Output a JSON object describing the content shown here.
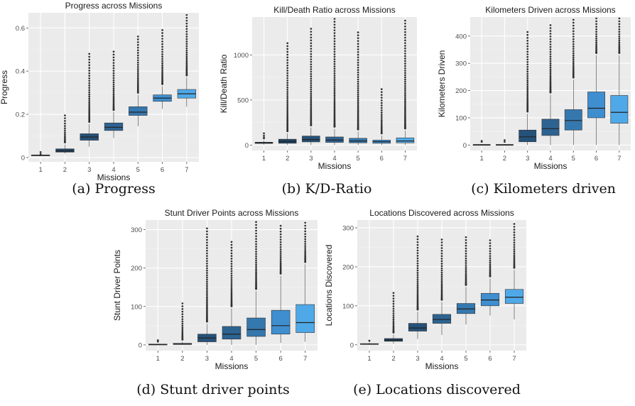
{
  "chart_data": [
    {
      "type": "box",
      "title": "Progress across Missions",
      "xlabel": "Missions",
      "ylabel": "Progress",
      "caption": "(a) Progress",
      "categories": [
        "1",
        "2",
        "3",
        "4",
        "5",
        "6",
        "7"
      ],
      "colors": [
        "#1d3b57",
        "#1f4666",
        "#26527a",
        "#2d6391",
        "#3578ae",
        "#3f8ed0",
        "#4fa9e8"
      ],
      "ylim": [
        -0.02,
        0.67
      ],
      "yticks": [
        0,
        0.2,
        0.4,
        0.6
      ],
      "ytick_labels": [
        "0",
        "0.2",
        "0.4",
        "0.6"
      ],
      "boxes": [
        {
          "q1": 0.008,
          "median": 0.01,
          "q3": 0.012,
          "whisker_low": 0.006,
          "whisker_high": 0.015,
          "outlier_max": 0.016
        },
        {
          "q1": 0.025,
          "median": 0.03,
          "q3": 0.04,
          "whisker_low": 0.018,
          "whisker_high": 0.06,
          "outlier_max": 0.195
        },
        {
          "q1": 0.08,
          "median": 0.095,
          "q3": 0.11,
          "whisker_low": 0.05,
          "whisker_high": 0.155,
          "outlier_max": 0.48
        },
        {
          "q1": 0.125,
          "median": 0.14,
          "q3": 0.16,
          "whisker_low": 0.09,
          "whisker_high": 0.21,
          "outlier_max": 0.49
        },
        {
          "q1": 0.195,
          "median": 0.21,
          "q3": 0.235,
          "whisker_low": 0.145,
          "whisker_high": 0.29,
          "outlier_max": 0.56
        },
        {
          "q1": 0.26,
          "median": 0.275,
          "q3": 0.29,
          "whisker_low": 0.225,
          "whisker_high": 0.33,
          "outlier_max": 0.59
        },
        {
          "q1": 0.275,
          "median": 0.295,
          "q3": 0.315,
          "whisker_low": 0.235,
          "whisker_high": 0.37,
          "outlier_max": 0.66
        }
      ]
    },
    {
      "type": "box",
      "title": "Kill/Death Ratio across Missions",
      "xlabel": "Missions",
      "ylabel": "Kill/Death Ratio",
      "caption": "(b) K/D-Ratio",
      "categories": [
        "1",
        "2",
        "3",
        "4",
        "5",
        "6",
        "7"
      ],
      "colors": [
        "#1d3b57",
        "#1f4666",
        "#26527a",
        "#2d6391",
        "#3578ae",
        "#3f8ed0",
        "#4fa9e8"
      ],
      "ylim": [
        -60,
        1420
      ],
      "yticks": [
        0,
        500,
        1000
      ],
      "ytick_labels": [
        "0",
        "500",
        "1000"
      ],
      "boxes": [
        {
          "q1": 18,
          "median": 25,
          "q3": 32,
          "whisker_low": 5,
          "whisker_high": 50,
          "outlier_max": 130
        },
        {
          "q1": 20,
          "median": 40,
          "q3": 65,
          "whisker_low": 0,
          "whisker_high": 130,
          "outlier_max": 1130
        },
        {
          "q1": 35,
          "median": 60,
          "q3": 100,
          "whisker_low": 0,
          "whisker_high": 195,
          "outlier_max": 1290
        },
        {
          "q1": 30,
          "median": 55,
          "q3": 90,
          "whisker_low": 0,
          "whisker_high": 180,
          "outlier_max": 1400
        },
        {
          "q1": 25,
          "median": 45,
          "q3": 75,
          "whisker_low": 0,
          "whisker_high": 150,
          "outlier_max": 1250
        },
        {
          "q1": 20,
          "median": 38,
          "q3": 55,
          "whisker_low": 0,
          "whisker_high": 105,
          "outlier_max": 620
        },
        {
          "q1": 25,
          "median": 45,
          "q3": 80,
          "whisker_low": 0,
          "whisker_high": 160,
          "outlier_max": 1380
        }
      ]
    },
    {
      "type": "box",
      "title": "Kilometers Driven across Missions",
      "xlabel": "Missions",
      "ylabel": "Kilometers Driven",
      "caption": "(c) Kilometers driven",
      "categories": [
        "1",
        "2",
        "3",
        "4",
        "5",
        "6",
        "7"
      ],
      "colors": [
        "#1d3b57",
        "#1f4666",
        "#26527a",
        "#2d6391",
        "#3578ae",
        "#3f8ed0",
        "#4fa9e8"
      ],
      "ylim": [
        -20,
        470
      ],
      "yticks": [
        0,
        100,
        200,
        300,
        400
      ],
      "ytick_labels": [
        "0",
        "100",
        "200",
        "300",
        "400"
      ],
      "boxes": [
        {
          "q1": 0,
          "median": 1,
          "q3": 2,
          "whisker_low": 0,
          "whisker_high": 4,
          "outlier_max": 15
        },
        {
          "q1": 0,
          "median": 1,
          "q3": 2,
          "whisker_low": 0,
          "whisker_high": 4,
          "outlier_max": 18
        },
        {
          "q1": 12,
          "median": 30,
          "q3": 55,
          "whisker_low": 0,
          "whisker_high": 115,
          "outlier_max": 415
        },
        {
          "q1": 35,
          "median": 60,
          "q3": 95,
          "whisker_low": 0,
          "whisker_high": 185,
          "outlier_max": 440
        },
        {
          "q1": 55,
          "median": 90,
          "q3": 130,
          "whisker_low": 0,
          "whisker_high": 240,
          "outlier_max": 460
        },
        {
          "q1": 100,
          "median": 135,
          "q3": 195,
          "whisker_low": 0,
          "whisker_high": 330,
          "outlier_max": 465
        },
        {
          "q1": 80,
          "median": 120,
          "q3": 182,
          "whisker_low": 0,
          "whisker_high": 330,
          "outlier_max": 465
        }
      ]
    },
    {
      "type": "box",
      "title": "Stunt Driver Points across Missions",
      "xlabel": "Missions",
      "ylabel": "Stunt Driver Points",
      "caption": "(d) Stunt driver points",
      "categories": [
        "1",
        "2",
        "3",
        "4",
        "5",
        "6",
        "7"
      ],
      "colors": [
        "#1d3b57",
        "#1f4666",
        "#26527a",
        "#2d6391",
        "#3578ae",
        "#3f8ed0",
        "#4fa9e8"
      ],
      "ylim": [
        -15,
        325
      ],
      "yticks": [
        0,
        100,
        200,
        300
      ],
      "ytick_labels": [
        "0",
        "100",
        "200",
        "300"
      ],
      "boxes": [
        {
          "q1": 0,
          "median": 1,
          "q3": 2,
          "whisker_low": 0,
          "whisker_high": 3,
          "outlier_max": 12
        },
        {
          "q1": 1,
          "median": 2,
          "q3": 4,
          "whisker_low": 0,
          "whisker_high": 8,
          "outlier_max": 108
        },
        {
          "q1": 8,
          "median": 18,
          "q3": 28,
          "whisker_low": 0,
          "whisker_high": 55,
          "outlier_max": 303
        },
        {
          "q1": 15,
          "median": 28,
          "q3": 48,
          "whisker_low": 0,
          "whisker_high": 95,
          "outlier_max": 268
        },
        {
          "q1": 22,
          "median": 40,
          "q3": 70,
          "whisker_low": 0,
          "whisker_high": 140,
          "outlier_max": 320
        },
        {
          "q1": 28,
          "median": 50,
          "q3": 90,
          "whisker_low": 5,
          "whisker_high": 180,
          "outlier_max": 310
        },
        {
          "q1": 32,
          "median": 58,
          "q3": 105,
          "whisker_low": 8,
          "whisker_high": 210,
          "outlier_max": 318
        }
      ]
    },
    {
      "type": "box",
      "title": "Locations Discovered across Missions",
      "xlabel": "Missions",
      "ylabel": "Locations Discovered",
      "caption": "(e) Locations discovered",
      "categories": [
        "1",
        "2",
        "3",
        "4",
        "5",
        "6",
        "7"
      ],
      "colors": [
        "#1d3b57",
        "#1f4666",
        "#26527a",
        "#2d6391",
        "#3578ae",
        "#3f8ed0",
        "#4fa9e8"
      ],
      "ylim": [
        -15,
        320
      ],
      "yticks": [
        0,
        100,
        200,
        300
      ],
      "ytick_labels": [
        "0",
        "100",
        "200",
        "300"
      ],
      "boxes": [
        {
          "q1": 1,
          "median": 2,
          "q3": 3,
          "whisker_low": 0,
          "whisker_high": 5,
          "outlier_max": 10
        },
        {
          "q1": 9,
          "median": 12,
          "q3": 16,
          "whisker_low": 3,
          "whisker_high": 26,
          "outlier_max": 133
        },
        {
          "q1": 35,
          "median": 43,
          "q3": 55,
          "whisker_low": 15,
          "whisker_high": 85,
          "outlier_max": 278
        },
        {
          "q1": 55,
          "median": 65,
          "q3": 78,
          "whisker_low": 25,
          "whisker_high": 110,
          "outlier_max": 270
        },
        {
          "q1": 80,
          "median": 92,
          "q3": 106,
          "whisker_low": 52,
          "whisker_high": 148,
          "outlier_max": 276
        },
        {
          "q1": 100,
          "median": 115,
          "q3": 132,
          "whisker_low": 75,
          "whisker_high": 170,
          "outlier_max": 268
        },
        {
          "q1": 106,
          "median": 122,
          "q3": 142,
          "whisker_low": 65,
          "whisker_high": 192,
          "outlier_max": 310
        }
      ]
    }
  ]
}
